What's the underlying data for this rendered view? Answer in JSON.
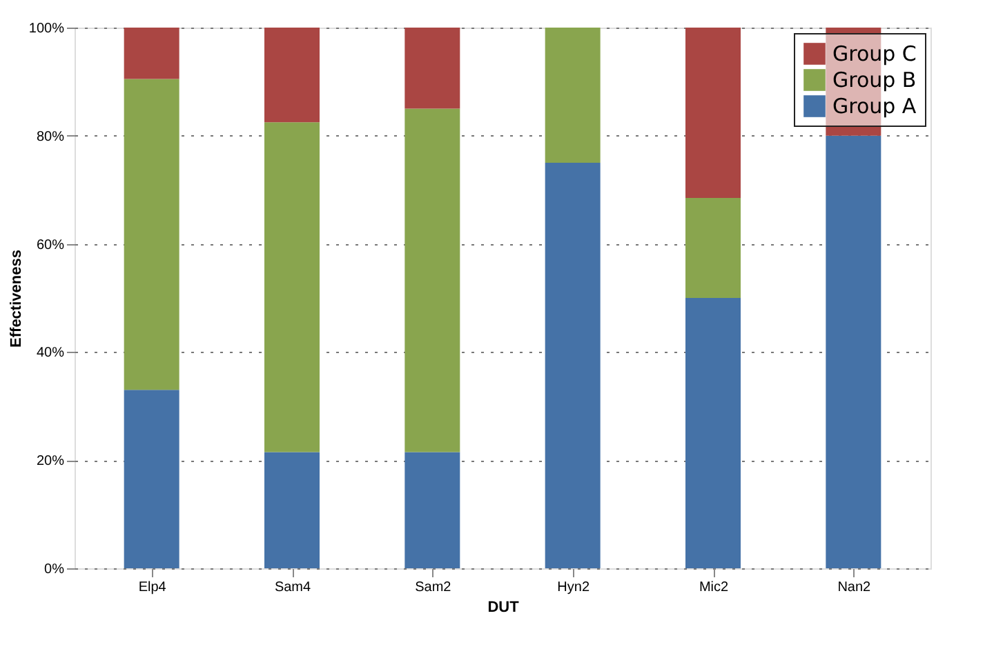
{
  "chart_data": {
    "type": "bar",
    "stacked": true,
    "xlabel": "DUT",
    "ylabel": "Effectiveness",
    "categories": [
      "Elp4",
      "Sam4",
      "Sam2",
      "Hyn2",
      "Mic2",
      "Nan2"
    ],
    "series": [
      {
        "name": "Group A",
        "color": "#4572a7",
        "values": [
          33,
          21.5,
          21.5,
          75,
          50,
          80
        ]
      },
      {
        "name": "Group B",
        "color": "#89a54e",
        "values": [
          57.5,
          61,
          63.5,
          25,
          18.5,
          0
        ]
      },
      {
        "name": "Group C",
        "color": "#aa4643",
        "values": [
          9.5,
          17.5,
          15,
          0,
          31.5,
          20
        ]
      }
    ],
    "ylim": [
      0,
      100
    ],
    "yticks": [
      {
        "value": 0,
        "label": "0%"
      },
      {
        "value": 20,
        "label": "20%"
      },
      {
        "value": 40,
        "label": "40%"
      },
      {
        "value": 60,
        "label": "60%"
      },
      {
        "value": 80,
        "label": "80%"
      },
      {
        "value": 100,
        "label": "100%"
      }
    ],
    "grid": "y",
    "legend": "top right"
  }
}
